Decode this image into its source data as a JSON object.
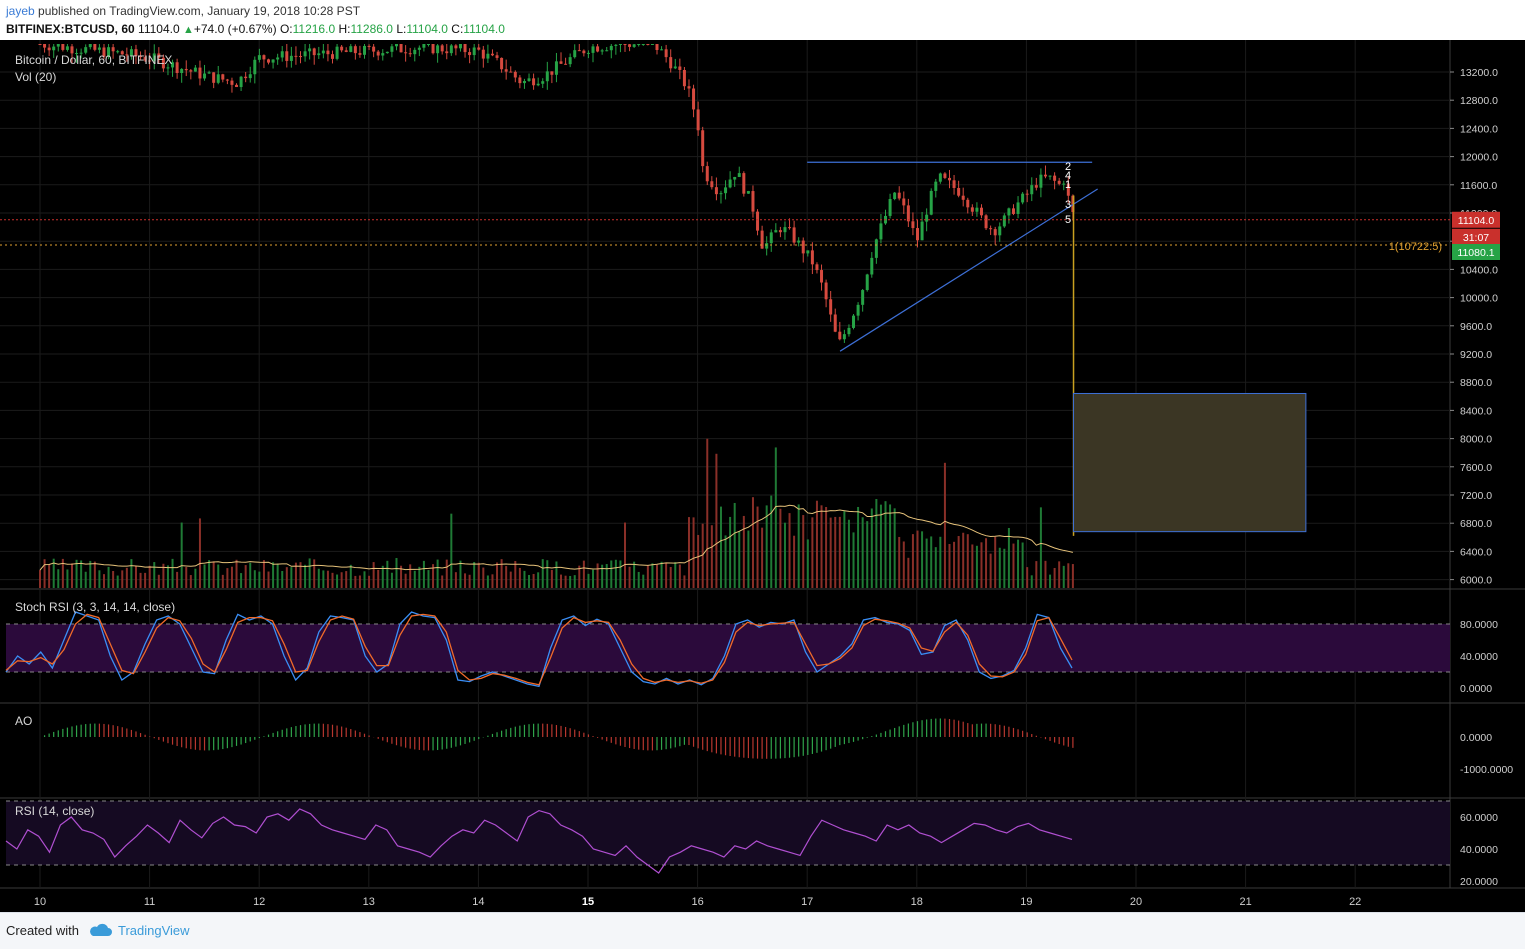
{
  "header": {
    "author": "jayeb",
    "published": "published on TradingView.com, January 19, 2018 10:28 PST",
    "symbol": "BITFINEX:BTCUSD, 60",
    "last": "11104.0",
    "change": "+74.0 (+0.67%)",
    "o_label": "O:",
    "o_value": "11216.0",
    "h_label": "H:",
    "h_value": "11286.0",
    "l_label": "L:",
    "l_value": "11104.0",
    "c_label": "C:",
    "c_value": "11104.0"
  },
  "colors": {
    "background": "#000000",
    "up": "#26a346",
    "down": "#d64a3f",
    "trendline": "#3d6fd6",
    "target_box": "#3b3624",
    "stoch_k": "#3a8ef5",
    "stoch_d": "#f06a2a",
    "rsi": "#b04fd1",
    "stoch_band": "#2b0a3b",
    "price_badge": "#c9302c",
    "fib_badge": "#26a346",
    "fib_line": "#e0a030"
  },
  "chart_data": [
    {
      "type": "candlestick",
      "title": "Bitcoin / Dollar, 60, BITFINEX",
      "x_ticks": [
        "10",
        "11",
        "12",
        "13",
        "14",
        "15",
        "16",
        "17",
        "18",
        "19",
        "20",
        "21",
        "22"
      ],
      "y_ticks": [
        "13200.0",
        "12800.0",
        "12400.0",
        "12000.0",
        "11600.0",
        "11200.0",
        "10800.0",
        "10400.0",
        "10000.0",
        "9600.0",
        "9200.0",
        "8800.0",
        "8400.0",
        "8000.0",
        "7600.0",
        "7200.0",
        "6800.0",
        "6400.0",
        "6000.0"
      ],
      "ylim": [
        5850,
        13600
      ],
      "xlim": [
        9.7,
        22.85
      ],
      "path": [
        [
          10.0,
          13600
        ],
        [
          10.8,
          13450
        ],
        [
          11.0,
          13400
        ],
        [
          11.5,
          13150
        ],
        [
          11.8,
          13050
        ],
        [
          12.0,
          13400
        ],
        [
          12.5,
          13450
        ],
        [
          13.0,
          13500
        ],
        [
          13.5,
          13550
        ],
        [
          14.0,
          13500
        ],
        [
          14.2,
          13300
        ],
        [
          14.4,
          13050
        ],
        [
          14.6,
          13150
        ],
        [
          14.8,
          13350
        ],
        [
          15.0,
          13550
        ],
        [
          15.3,
          13600
        ],
        [
          15.6,
          13600
        ],
        [
          15.75,
          13350
        ],
        [
          15.9,
          13000
        ],
        [
          16.0,
          12500
        ],
        [
          16.05,
          11800
        ],
        [
          16.2,
          11500
        ],
        [
          16.35,
          11800
        ],
        [
          16.5,
          11300
        ],
        [
          16.6,
          10700
        ],
        [
          16.75,
          11000
        ],
        [
          16.85,
          10900
        ],
        [
          16.95,
          10700
        ],
        [
          17.05,
          10500
        ],
        [
          17.15,
          10100
        ],
        [
          17.25,
          9500
        ],
        [
          17.3,
          9350
        ],
        [
          17.4,
          9700
        ],
        [
          17.5,
          10100
        ],
        [
          17.6,
          10700
        ],
        [
          17.7,
          11100
        ],
        [
          17.8,
          11500
        ],
        [
          17.9,
          11200
        ],
        [
          18.0,
          10800
        ],
        [
          18.1,
          11300
        ],
        [
          18.2,
          11700
        ],
        [
          18.3,
          11600
        ],
        [
          18.4,
          11500
        ],
        [
          18.5,
          11300
        ],
        [
          18.6,
          11100
        ],
        [
          18.7,
          10950
        ],
        [
          18.8,
          11100
        ],
        [
          18.9,
          11300
        ],
        [
          19.0,
          11450
        ],
        [
          19.1,
          11650
        ],
        [
          19.2,
          11700
        ],
        [
          19.3,
          11600
        ],
        [
          19.35,
          11700
        ],
        [
          19.4,
          11250
        ],
        [
          19.45,
          11104
        ]
      ],
      "resistance": {
        "start": [
          17.0,
          11920
        ],
        "end": [
          19.6,
          11920
        ]
      },
      "support": {
        "start": [
          17.3,
          9240
        ],
        "end": [
          19.65,
          11540
        ]
      },
      "projection_line": {
        "start": [
          19.43,
          11450
        ],
        "end": [
          19.43,
          6620
        ]
      },
      "target_box": {
        "x0": 19.43,
        "x1": 21.55,
        "y_top": 8640,
        "y_bottom": 6680
      },
      "wave_labels": [
        "2",
        "4",
        "1",
        "3",
        "5"
      ],
      "last_price": "11104.0",
      "countdown": "31:07",
      "fib_price": "11080.1",
      "fib_label": "1(10722.5)",
      "fib_level": 10722.5
    },
    {
      "type": "bar",
      "title": "Vol (20)"
    },
    {
      "type": "line",
      "title": "Stoch RSI (3, 3, 14, 14, close)",
      "y_ticks": [
        "80.0000",
        "40.0000",
        "0.0000"
      ],
      "ylim": [
        0,
        100
      ],
      "bands": [
        20,
        80
      ],
      "series": [
        {
          "color": "#3a8ef5",
          "values": [
            20,
            40,
            30,
            45,
            25,
            60,
            95,
            90,
            85,
            40,
            10,
            20,
            55,
            85,
            90,
            80,
            50,
            20,
            18,
            60,
            92,
            85,
            90,
            80,
            40,
            10,
            25,
            70,
            90,
            88,
            85,
            40,
            20,
            30,
            80,
            95,
            90,
            88,
            60,
            10,
            8,
            15,
            20,
            15,
            10,
            5,
            2,
            50,
            85,
            90,
            78,
            86,
            80,
            50,
            20,
            8,
            5,
            12,
            5,
            10,
            4,
            12,
            40,
            80,
            85,
            76,
            82,
            80,
            85,
            45,
            20,
            30,
            40,
            55,
            85,
            88,
            82,
            80,
            72,
            42,
            45,
            78,
            85,
            60,
            20,
            12,
            15,
            22,
            50,
            92,
            88,
            50,
            25
          ]
        },
        {
          "color": "#f06a2a",
          "values": [
            22,
            34,
            33,
            38,
            30,
            48,
            80,
            92,
            88,
            55,
            22,
            18,
            45,
            75,
            88,
            84,
            62,
            30,
            20,
            48,
            82,
            88,
            88,
            84,
            55,
            20,
            22,
            58,
            85,
            90,
            86,
            52,
            28,
            28,
            66,
            90,
            92,
            90,
            70,
            22,
            10,
            12,
            18,
            16,
            12,
            7,
            4,
            38,
            75,
            88,
            82,
            84,
            82,
            60,
            30,
            12,
            7,
            10,
            7,
            9,
            6,
            10,
            32,
            70,
            82,
            78,
            80,
            81,
            82,
            55,
            28,
            30,
            37,
            50,
            78,
            86,
            84,
            81,
            75,
            50,
            46,
            70,
            82,
            66,
            30,
            15,
            14,
            20,
            42,
            84,
            88,
            62,
            35
          ]
        }
      ]
    },
    {
      "type": "bar",
      "title": "AO",
      "y_ticks": [
        "0.0000",
        "-1000.0000"
      ],
      "ylim": [
        -1600,
        900
      ]
    },
    {
      "type": "line",
      "title": "RSI (14, close)",
      "y_ticks": [
        "60.0000",
        "40.0000",
        "20.0000"
      ],
      "ylim": [
        15,
        70
      ],
      "bands": [
        30,
        70
      ],
      "series": [
        {
          "color": "#b04fd1",
          "values": [
            45,
            40,
            52,
            48,
            38,
            55,
            60,
            52,
            50,
            46,
            35,
            42,
            48,
            55,
            50,
            44,
            58,
            52,
            47,
            56,
            60,
            55,
            54,
            50,
            60,
            62,
            58,
            65,
            62,
            55,
            52,
            50,
            48,
            46,
            55,
            52,
            42,
            40,
            38,
            35,
            42,
            48,
            52,
            50,
            58,
            55,
            50,
            45,
            60,
            64,
            62,
            55,
            52,
            48,
            40,
            38,
            36,
            42,
            35,
            30,
            25,
            35,
            38,
            42,
            40,
            38,
            35,
            42,
            40,
            45,
            42,
            40,
            38,
            36,
            48,
            58,
            55,
            52,
            50,
            48,
            45,
            55,
            52,
            55,
            50,
            48,
            44,
            48,
            52,
            56,
            55,
            52,
            50,
            54,
            56,
            52,
            50,
            48,
            46
          ]
        }
      ]
    }
  ],
  "footer": {
    "created_with": "Created with",
    "brand": "TradingView"
  }
}
